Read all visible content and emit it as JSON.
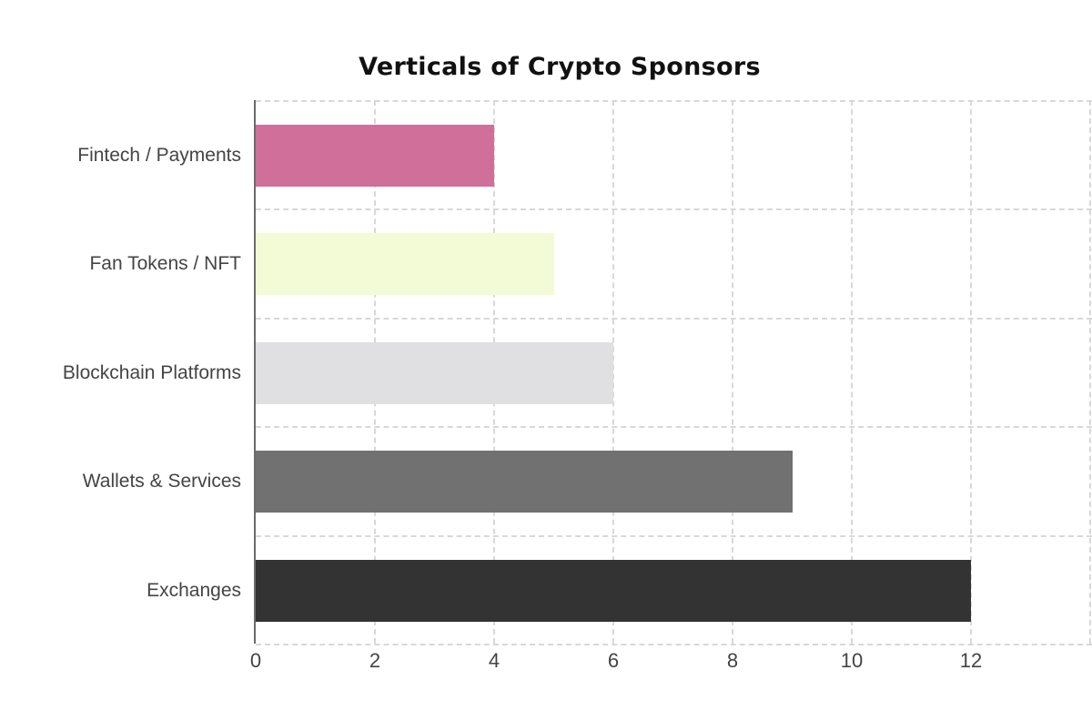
{
  "chart_data": {
    "type": "bar",
    "orientation": "horizontal",
    "title": "Verticals of Crypto Sponsors",
    "xlabel": "",
    "ylabel": "",
    "categories": [
      "Fintech / Payments",
      "Fan Tokens / NFT",
      "Blockchain Platforms",
      "Wallets & Services",
      "Exchanges"
    ],
    "values": [
      4,
      5,
      6,
      9,
      12
    ],
    "colors": [
      "#cf6f9a",
      "#f3fad6",
      "#e0e0e2",
      "#717171",
      "#333333"
    ],
    "xlim": [
      0,
      14
    ],
    "xticks": [
      "0",
      "2",
      "4",
      "6",
      "8",
      "10",
      "12"
    ],
    "grid": true,
    "legend": "none"
  }
}
